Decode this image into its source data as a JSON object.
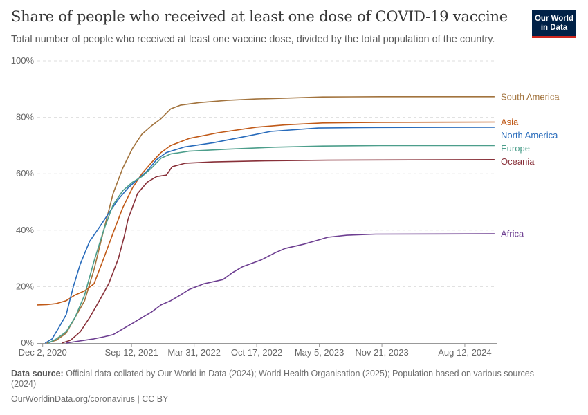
{
  "header": {
    "title": "Share of people who received at least one dose of COVID-19 vaccine",
    "subtitle": "Total number of people who received at least one vaccine dose, divided by the total population of the country.",
    "logo_line1": "Our World",
    "logo_line2": "in Data"
  },
  "footer": {
    "source_label": "Data source:",
    "source_text": "Official data collated by Our World in Data (2024); World Health Organisation (2025); Population based on various sources (2024)",
    "url_text": "OurWorldinData.org/coronavirus | CC BY"
  },
  "chart_data": {
    "type": "line",
    "ylim": [
      0,
      100
    ],
    "yticks": [
      0,
      20,
      40,
      60,
      80,
      100
    ],
    "ytick_labels": [
      "0%",
      "20%",
      "40%",
      "60%",
      "80%",
      "100%"
    ],
    "xlim": [
      "2020-11-15",
      "2024-11-24"
    ],
    "xticks": [
      "2020-12-02",
      "2021-09-12",
      "2022-03-31",
      "2022-10-17",
      "2023-05-05",
      "2023-11-21",
      "2024-08-12"
    ],
    "xtick_labels": [
      "Dec 2, 2020",
      "Sep 12, 2021",
      "Mar 31, 2022",
      "Oct 17, 2022",
      "May 5, 2023",
      "Nov 21, 2023",
      "Aug 12, 2024"
    ],
    "grid": "horizontal dashed",
    "series": [
      {
        "name": "South America",
        "color": "#a2733d",
        "points": [
          [
            "2020-12-15",
            0
          ],
          [
            "2021-01-15",
            1
          ],
          [
            "2021-02-15",
            3.5
          ],
          [
            "2021-03-15",
            9
          ],
          [
            "2021-04-15",
            15
          ],
          [
            "2021-05-15",
            26
          ],
          [
            "2021-06-15",
            40
          ],
          [
            "2021-07-15",
            53
          ],
          [
            "2021-08-15",
            62
          ],
          [
            "2021-09-15",
            69
          ],
          [
            "2021-10-15",
            74
          ],
          [
            "2021-11-15",
            77
          ],
          [
            "2021-12-15",
            79.5
          ],
          [
            "2022-01-15",
            83
          ],
          [
            "2022-02-15",
            84.3
          ],
          [
            "2022-04-15",
            85.2
          ],
          [
            "2022-07-15",
            86
          ],
          [
            "2022-10-15",
            86.5
          ],
          [
            "2023-01-15",
            86.8
          ],
          [
            "2023-05-15",
            87.2
          ],
          [
            "2023-11-15",
            87.3
          ],
          [
            "2024-11-15",
            87.3
          ]
        ]
      },
      {
        "name": "Asia",
        "color": "#c05917",
        "points": [
          [
            "2020-11-15",
            13.5
          ],
          [
            "2020-12-15",
            13.6
          ],
          [
            "2021-01-15",
            14
          ],
          [
            "2021-02-15",
            15
          ],
          [
            "2021-03-15",
            17
          ],
          [
            "2021-04-15",
            18.5
          ],
          [
            "2021-05-15",
            21
          ],
          [
            "2021-06-15",
            30
          ],
          [
            "2021-07-15",
            39
          ],
          [
            "2021-08-15",
            48
          ],
          [
            "2021-09-15",
            55
          ],
          [
            "2021-10-15",
            60
          ],
          [
            "2021-11-15",
            64
          ],
          [
            "2021-12-15",
            67.5
          ],
          [
            "2022-01-15",
            70
          ],
          [
            "2022-03-15",
            72.5
          ],
          [
            "2022-06-15",
            74.5
          ],
          [
            "2022-10-15",
            76.5
          ],
          [
            "2023-01-15",
            77.3
          ],
          [
            "2023-05-15",
            78
          ],
          [
            "2023-11-15",
            78.2
          ],
          [
            "2024-11-15",
            78.3
          ]
        ]
      },
      {
        "name": "North America",
        "color": "#286bbb",
        "points": [
          [
            "2020-12-10",
            0
          ],
          [
            "2021-01-01",
            1.5
          ],
          [
            "2021-01-20",
            5
          ],
          [
            "2021-02-15",
            10
          ],
          [
            "2021-03-10",
            20
          ],
          [
            "2021-04-01",
            28
          ],
          [
            "2021-05-01",
            36
          ],
          [
            "2021-06-01",
            41
          ],
          [
            "2021-07-01",
            46
          ],
          [
            "2021-08-01",
            51
          ],
          [
            "2021-09-01",
            55
          ],
          [
            "2021-10-01",
            58
          ],
          [
            "2021-11-01",
            61
          ],
          [
            "2021-12-01",
            65
          ],
          [
            "2022-01-01",
            67.5
          ],
          [
            "2022-03-01",
            69.5
          ],
          [
            "2022-06-01",
            71
          ],
          [
            "2022-09-01",
            73
          ],
          [
            "2022-12-01",
            75
          ],
          [
            "2023-05-01",
            76.2
          ],
          [
            "2023-11-01",
            76.4
          ],
          [
            "2024-11-15",
            76.5
          ]
        ]
      },
      {
        "name": "Europe",
        "color": "#4c9e8b",
        "points": [
          [
            "2020-12-20",
            0
          ],
          [
            "2021-01-15",
            1.5
          ],
          [
            "2021-02-15",
            4
          ],
          [
            "2021-03-15",
            9
          ],
          [
            "2021-04-15",
            17
          ],
          [
            "2021-05-15",
            29
          ],
          [
            "2021-06-15",
            40
          ],
          [
            "2021-07-15",
            49
          ],
          [
            "2021-08-15",
            54
          ],
          [
            "2021-09-15",
            57
          ],
          [
            "2021-10-15",
            59
          ],
          [
            "2021-11-15",
            62
          ],
          [
            "2021-12-15",
            65.5
          ],
          [
            "2022-01-15",
            67
          ],
          [
            "2022-03-15",
            68
          ],
          [
            "2022-07-15",
            68.7
          ],
          [
            "2022-12-15",
            69.4
          ],
          [
            "2023-05-15",
            69.8
          ],
          [
            "2023-11-15",
            70
          ],
          [
            "2024-11-15",
            70
          ]
        ]
      },
      {
        "name": "Oceania",
        "color": "#883039",
        "points": [
          [
            "2021-02-01",
            0
          ],
          [
            "2021-03-01",
            1
          ],
          [
            "2021-04-01",
            4
          ],
          [
            "2021-05-01",
            9
          ],
          [
            "2021-06-01",
            15
          ],
          [
            "2021-07-01",
            21
          ],
          [
            "2021-08-01",
            30
          ],
          [
            "2021-08-20",
            38
          ],
          [
            "2021-09-01",
            44
          ],
          [
            "2021-10-01",
            53
          ],
          [
            "2021-11-01",
            57
          ],
          [
            "2021-12-01",
            59
          ],
          [
            "2022-01-01",
            59.5
          ],
          [
            "2022-01-20",
            62.5
          ],
          [
            "2022-03-01",
            63.7
          ],
          [
            "2022-06-01",
            64.2
          ],
          [
            "2022-12-01",
            64.6
          ],
          [
            "2023-06-01",
            64.8
          ],
          [
            "2024-11-15",
            65
          ]
        ]
      },
      {
        "name": "Africa",
        "color": "#6d3e91",
        "points": [
          [
            "2021-02-15",
            0
          ],
          [
            "2021-03-15",
            0.5
          ],
          [
            "2021-04-15",
            1
          ],
          [
            "2021-05-15",
            1.5
          ],
          [
            "2021-06-15",
            2.2
          ],
          [
            "2021-07-15",
            3
          ],
          [
            "2021-08-15",
            5
          ],
          [
            "2021-09-15",
            7
          ],
          [
            "2021-10-15",
            9
          ],
          [
            "2021-11-15",
            11
          ],
          [
            "2021-12-15",
            13.5
          ],
          [
            "2022-01-15",
            15
          ],
          [
            "2022-02-15",
            17
          ],
          [
            "2022-03-15",
            19
          ],
          [
            "2022-05-01",
            21
          ],
          [
            "2022-07-01",
            22.5
          ],
          [
            "2022-08-01",
            25
          ],
          [
            "2022-09-01",
            27
          ],
          [
            "2022-11-01",
            29.5
          ],
          [
            "2022-12-15",
            32
          ],
          [
            "2023-01-15",
            33.5
          ],
          [
            "2023-03-15",
            35
          ],
          [
            "2023-05-01",
            36.5
          ],
          [
            "2023-06-01",
            37.5
          ],
          [
            "2023-08-01",
            38.2
          ],
          [
            "2023-11-01",
            38.6
          ],
          [
            "2024-11-15",
            38.7
          ]
        ]
      }
    ]
  }
}
